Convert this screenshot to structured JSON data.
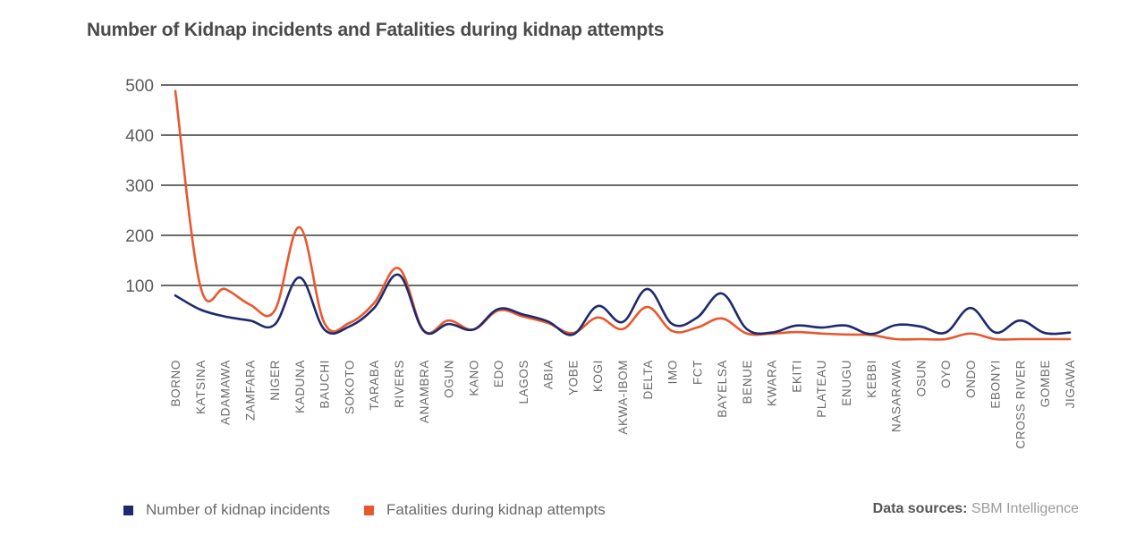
{
  "chart_data": {
    "type": "line",
    "title": "Number of Kidnap incidents and Fatalities during kidnap attempts",
    "xlabel": "",
    "ylabel": "",
    "ylim": [
      0,
      500
    ],
    "yticks": [
      "100",
      "200",
      "300",
      "400",
      "500"
    ],
    "ytick_values": [
      100,
      200,
      300,
      400,
      500
    ],
    "grid": true,
    "legend_position": "bottom-left",
    "categories": [
      "BORNO",
      "KATSINA",
      "ADAMAWA",
      "ZAMFARA",
      "NIGER",
      "KADUNA",
      "BAUCHI",
      "SOKOTO",
      "TARABA",
      "RIVERS",
      "ANAMBRA",
      "OGUN",
      "KANO",
      "EDO",
      "LAGOS",
      "ABIA",
      "YOBE",
      "KOGI",
      "AKWA-IBOM",
      "DELTA",
      "IMO",
      "FCT",
      "BAYELSA",
      "BENUE",
      "KWARA",
      "EKITI",
      "PLATEAU",
      "ENUGU",
      "KEBBI",
      "NASARAWA",
      "OSUN",
      "OYO",
      "ONDO",
      "EBONYI",
      "CROSS RIVER",
      "GOMBE",
      "JIGAWA"
    ],
    "series": [
      {
        "name": "Number of kidnap incidents",
        "color": "#1f2a6e",
        "values": [
          80,
          52,
          38,
          30,
          22,
          116,
          12,
          18,
          55,
          121,
          9,
          23,
          12,
          53,
          42,
          28,
          2,
          59,
          27,
          93,
          23,
          36,
          84,
          13,
          6,
          20,
          16,
          20,
          3,
          21,
          18,
          6,
          55,
          6,
          30,
          5,
          6
        ]
      },
      {
        "name": "Fatalities during kidnap attempts",
        "color": "#e8582e",
        "values": [
          488,
          100,
          93,
          62,
          50,
          216,
          25,
          25,
          65,
          134,
          10,
          30,
          12,
          50,
          38,
          25,
          5,
          36,
          13,
          57,
          9,
          16,
          34,
          4,
          4,
          7,
          4,
          2,
          1,
          0,
          0,
          0,
          4,
          0,
          0,
          0,
          0
        ]
      }
    ]
  },
  "legend": {
    "items": [
      {
        "label": "Number of kidnap incidents",
        "color": "#1f2a6e"
      },
      {
        "label": "Fatalities during kidnap attempts",
        "color": "#e8582e"
      }
    ]
  },
  "source": {
    "label": "Data sources:",
    "value": "SBM Intelligence"
  }
}
